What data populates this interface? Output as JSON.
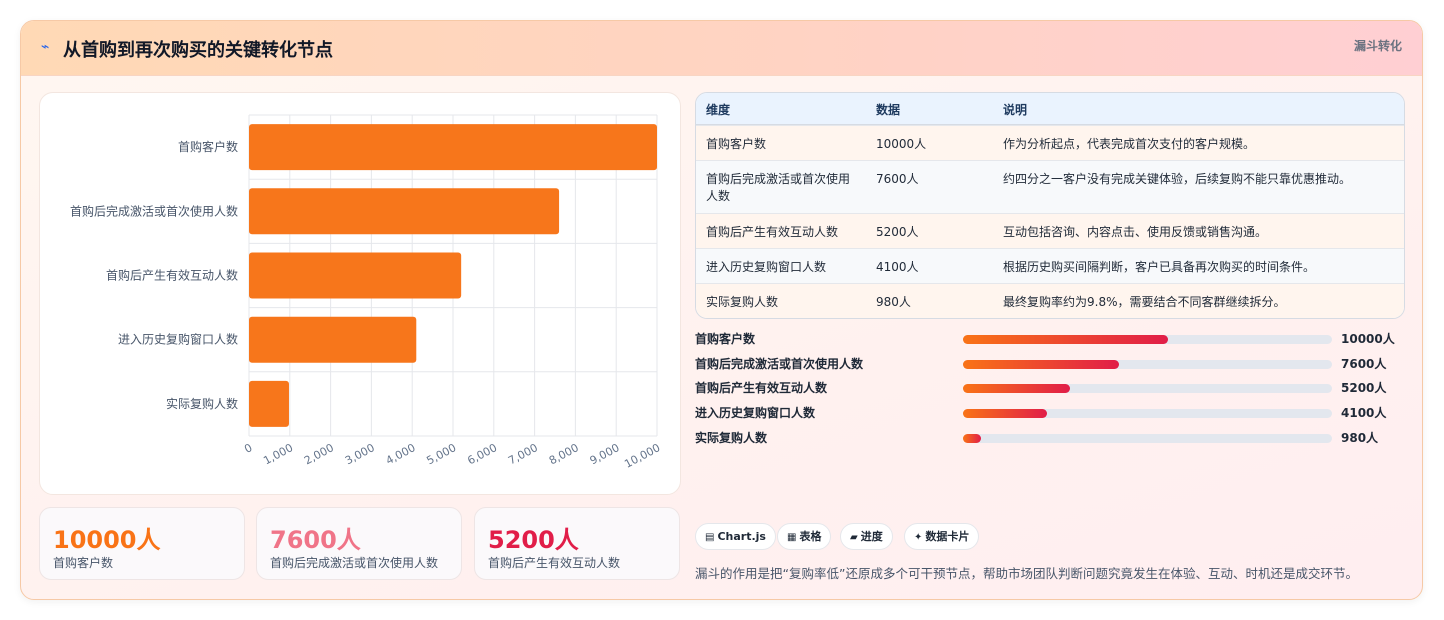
{
  "header": {
    "icon": "chart-trend-icon",
    "title": "从首购到再次购买的关键转化节点",
    "tag": "漏斗转化"
  },
  "chart_data": {
    "type": "bar",
    "orientation": "horizontal",
    "categories": [
      "首购客户数",
      "首购后完成激活或首次使用人数",
      "首购后产生有效互动人数",
      "进入历史复购窗口人数",
      "实际复购人数"
    ],
    "values": [
      10000,
      7600,
      5200,
      4100,
      980
    ],
    "xlim": [
      0,
      10000
    ],
    "ticks": [
      "0",
      "1,000",
      "2,000",
      "3,000",
      "4,000",
      "5,000",
      "6,000",
      "7,000",
      "8,000",
      "9,000",
      "10,000"
    ],
    "tick_values": [
      0,
      1000,
      2000,
      3000,
      4000,
      5000,
      6000,
      7000,
      8000,
      9000,
      10000
    ],
    "color": "#f7761b",
    "grid": true,
    "legend": "none"
  },
  "stats": [
    {
      "value": "10000人",
      "label": "首购客户数",
      "color": "#f97316"
    },
    {
      "value": "7600人",
      "label": "首购后完成激活或首次使用人数",
      "color": "#f07488"
    },
    {
      "value": "5200人",
      "label": "首购后产生有效互动人数",
      "color": "#e11d48"
    }
  ],
  "table": {
    "headers": [
      "维度",
      "数据",
      "说明"
    ],
    "rows": [
      {
        "dim": "首购客户数",
        "data": "10000人",
        "desc": "作为分析起点，代表完成首次支付的客户规模。",
        "bg": "#fff5ee"
      },
      {
        "dim": "首购后完成激活或首次使用人数",
        "data": "7600人",
        "desc": "约四分之一客户没有完成关键体验，后续复购不能只靠优惠推动。",
        "bg": "#f7f9fb"
      },
      {
        "dim": "首购后产生有效互动人数",
        "data": "5200人",
        "desc": "互动包括咨询、内容点击、使用反馈或销售沟通。",
        "bg": "#fff5ee"
      },
      {
        "dim": "进入历史复购窗口人数",
        "data": "4100人",
        "desc": "根据历史购买间隔判断，客户已具备再次购买的时间条件。",
        "bg": "#f7f9fb"
      },
      {
        "dim": "实际复购人数",
        "data": "980人",
        "desc": "最终复购率约为9.8%，需要结合不同客群继续拆分。",
        "bg": "#fff5ee"
      }
    ]
  },
  "progress": [
    {
      "label": "首购客户数",
      "value": "10000人",
      "fraction": 0.556
    },
    {
      "label": "首购后完成激活或首次使用人数",
      "value": "7600人",
      "fraction": 0.423
    },
    {
      "label": "首购后产生有效互动人数",
      "value": "5200人",
      "fraction": 0.289
    },
    {
      "label": "进入历史复购窗口人数",
      "value": "4100人",
      "fraction": 0.228
    },
    {
      "label": "实际复购人数",
      "value": "980人",
      "fraction": 0.05
    }
  ],
  "pills": [
    {
      "icon": "chart-icon",
      "glyph": "▤",
      "label": "Chart.js"
    },
    {
      "icon": "table-icon",
      "glyph": "▦",
      "label": "表格"
    },
    {
      "icon": "progress-icon",
      "glyph": "▰",
      "label": "进度"
    },
    {
      "icon": "sparkle-icon",
      "glyph": "✦",
      "label": "数据卡片"
    }
  ],
  "footnote": "漏斗的作用是把“复购率低”还原成多个可干预节点，帮助市场团队判断问题究竟发生在体验、互动、时机还是成交环节。"
}
